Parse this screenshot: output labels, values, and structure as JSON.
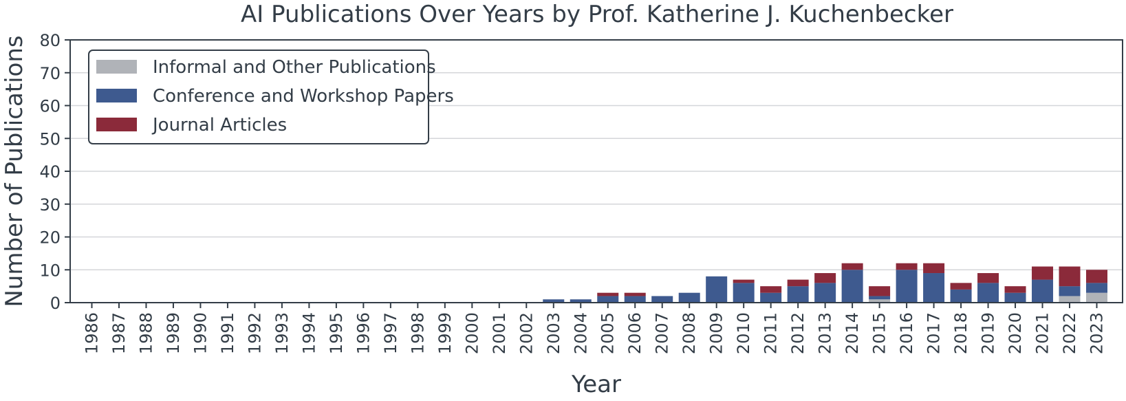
{
  "chart_data": {
    "type": "bar",
    "stacked": true,
    "title": "AI Publications Over Years by Prof. Katherine J. Kuchenbecker",
    "xlabel": "Year",
    "ylabel": "Number of Publications",
    "ylim": [
      0,
      80
    ],
    "yticks": [
      0,
      10,
      20,
      30,
      40,
      50,
      60,
      70,
      80
    ],
    "grid": "horizontal",
    "legend_position": "top-left",
    "categories": [
      "1986",
      "1987",
      "1988",
      "1989",
      "1990",
      "1991",
      "1992",
      "1993",
      "1994",
      "1995",
      "1996",
      "1997",
      "1998",
      "1999",
      "2000",
      "2001",
      "2002",
      "2003",
      "2004",
      "2005",
      "2006",
      "2007",
      "2008",
      "2009",
      "2010",
      "2011",
      "2012",
      "2013",
      "2014",
      "2015",
      "2016",
      "2017",
      "2018",
      "2019",
      "2020",
      "2021",
      "2022",
      "2023"
    ],
    "series": [
      {
        "name": "Informal and Other Publications",
        "color": "#b0b3b8",
        "values": [
          0,
          0,
          0,
          0,
          0,
          0,
          0,
          0,
          0,
          0,
          0,
          0,
          0,
          0,
          0,
          0,
          0,
          0,
          0,
          0,
          0,
          0,
          0,
          0,
          0,
          0,
          0,
          0,
          0,
          1,
          0,
          0,
          0,
          0,
          0,
          0,
          2,
          3
        ]
      },
      {
        "name": "Conference and Workshop Papers",
        "color": "#3e5a8f",
        "values": [
          0,
          0,
          0,
          0,
          0,
          0,
          0,
          0,
          0,
          0,
          0,
          0,
          0,
          0,
          0,
          0,
          0,
          1,
          1,
          2,
          2,
          2,
          3,
          8,
          6,
          3,
          5,
          6,
          10,
          1,
          10,
          9,
          4,
          6,
          3,
          7,
          3,
          3
        ]
      },
      {
        "name": "Journal Articles",
        "color": "#8b2a3a",
        "values": [
          0,
          0,
          0,
          0,
          0,
          0,
          0,
          0,
          0,
          0,
          0,
          0,
          0,
          0,
          0,
          0,
          0,
          0,
          0,
          1,
          1,
          0,
          0,
          0,
          1,
          2,
          2,
          3,
          2,
          3,
          2,
          3,
          2,
          3,
          2,
          4,
          6,
          4
        ]
      }
    ]
  }
}
